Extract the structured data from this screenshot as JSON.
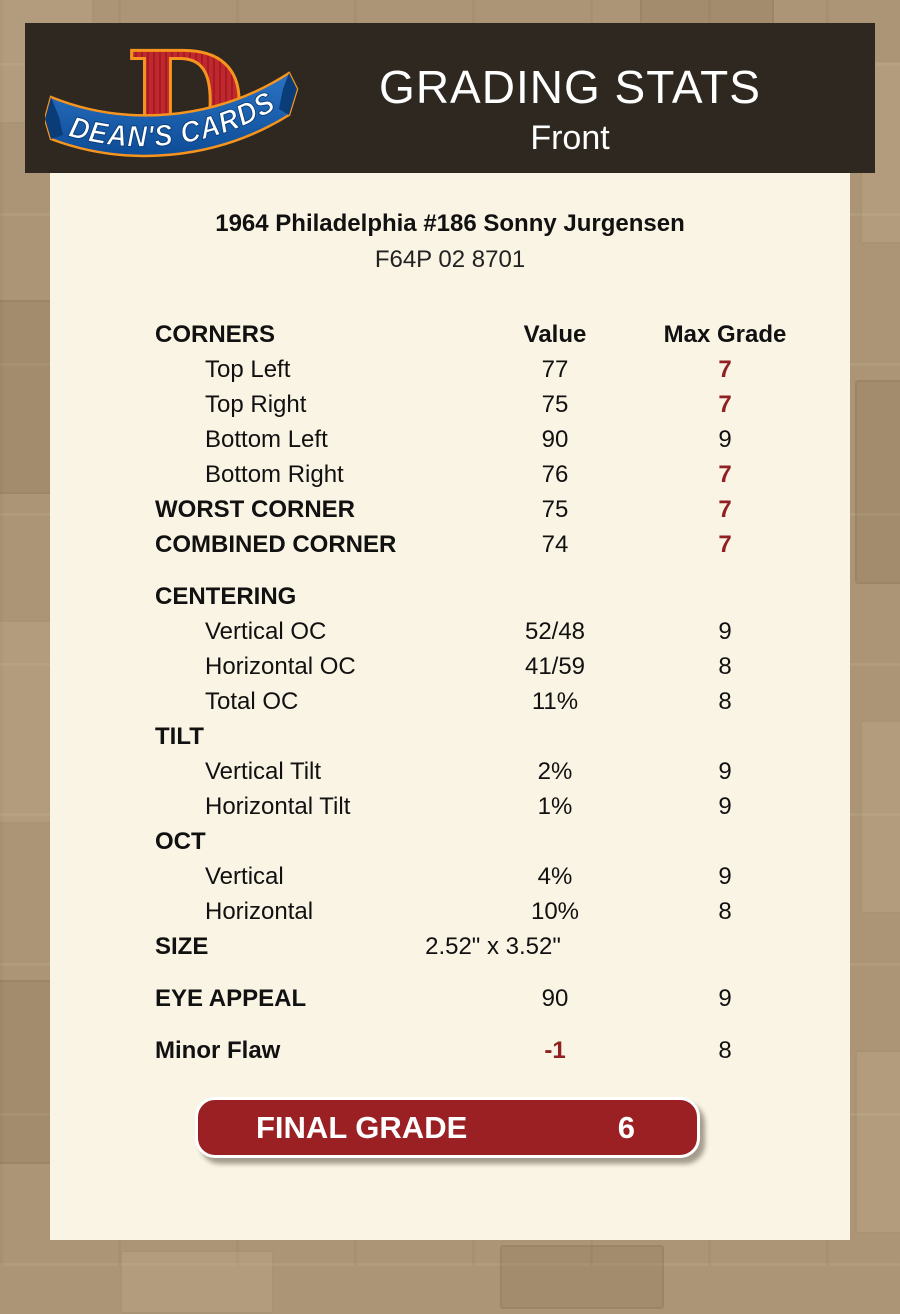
{
  "header": {
    "title": "GRADING STATS",
    "subtitle": "Front",
    "logo": {
      "brand": "DEAN'S CARDS",
      "monogram": "D"
    }
  },
  "card": {
    "title": "1964 Philadelphia #186 Sonny Jurgensen",
    "serial": "F64P 02 8701"
  },
  "table": {
    "section_header": "CORNERS",
    "columns": {
      "value": "Value",
      "grade": "Max Grade"
    },
    "rows": [
      {
        "label": "Top Left",
        "value": "77",
        "grade": "7",
        "indent": true,
        "grade_red": true
      },
      {
        "label": "Top Right",
        "value": "75",
        "grade": "7",
        "indent": true,
        "grade_red": true
      },
      {
        "label": "Bottom Left",
        "value": "90",
        "grade": "9",
        "indent": true
      },
      {
        "label": "Bottom Right",
        "value": "76",
        "grade": "7",
        "indent": true,
        "grade_red": true
      },
      {
        "label": "WORST CORNER",
        "value": "75",
        "grade": "7",
        "bold": true,
        "grade_red": true
      },
      {
        "label": "COMBINED CORNER",
        "value": "74",
        "grade": "7",
        "bold": true,
        "grade_red": true
      },
      {
        "label": "CENTERING",
        "value": "",
        "grade": "",
        "bold": true,
        "gap_before": true
      },
      {
        "label": "Vertical OC",
        "value": "52/48",
        "grade": "9",
        "indent": true
      },
      {
        "label": "Horizontal OC",
        "value": "41/59",
        "grade": "8",
        "indent": true
      },
      {
        "label": "Total OC",
        "value": "11%",
        "grade": "8",
        "indent": true
      },
      {
        "label": "TILT",
        "value": "",
        "grade": "",
        "bold": true
      },
      {
        "label": "Vertical Tilt",
        "value": "2%",
        "grade": "9",
        "indent": true
      },
      {
        "label": "Horizontal Tilt",
        "value": "1%",
        "grade": "9",
        "indent": true
      },
      {
        "label": "OCT",
        "value": "",
        "grade": "",
        "bold": true
      },
      {
        "label": "Vertical",
        "value": "4%",
        "grade": "9",
        "indent": true
      },
      {
        "label": "Horizontal",
        "value": "10%",
        "grade": "8",
        "indent": true
      },
      {
        "label": "SIZE",
        "value": "2.52\" x 3.52\"",
        "grade": "",
        "bold": true,
        "wide_value": true
      },
      {
        "label": "EYE APPEAL",
        "value": "90",
        "grade": "9",
        "bold": true,
        "gap_before": true
      },
      {
        "label": "Minor Flaw",
        "value": "-1",
        "grade": "8",
        "bold": true,
        "gap_before": true,
        "value_red": true
      }
    ]
  },
  "final_grade": {
    "label": "FINAL GRADE",
    "value": "6"
  },
  "colors": {
    "accent_red": "#8F2124",
    "button_red": "#9B2023",
    "header_bg": "#2E2820",
    "panel_bg": "#FAF4E4",
    "page_bg": "#AC9577",
    "logo_red": "#C1272D",
    "logo_blue": "#1A5DAD",
    "logo_trim_orange": "#F7941E"
  }
}
